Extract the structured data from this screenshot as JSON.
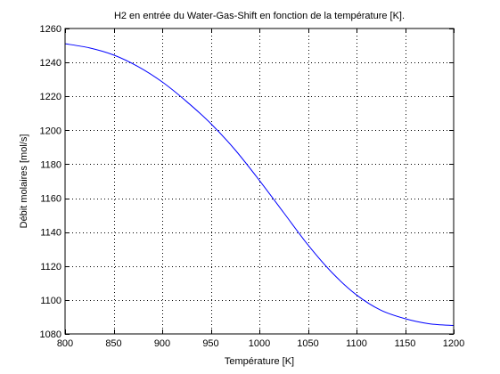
{
  "chart_data": {
    "type": "line",
    "title": "H2 en entrée du Water-Gas-Shift en fonction de la température [K].",
    "xlabel": "Température [K]",
    "ylabel": "Débit molaires [mol/s]",
    "xlim": [
      800,
      1200
    ],
    "ylim": [
      1080,
      1260
    ],
    "xticks": [
      800,
      850,
      900,
      950,
      1000,
      1050,
      1100,
      1150,
      1200
    ],
    "yticks": [
      1080,
      1100,
      1120,
      1140,
      1160,
      1180,
      1200,
      1220,
      1240,
      1260
    ],
    "grid": true,
    "grid_style": "dotted",
    "series": [
      {
        "color": "#0000ff",
        "x": [
          800,
          825,
          850,
          875,
          900,
          925,
          950,
          975,
          1000,
          1025,
          1050,
          1075,
          1100,
          1125,
          1150,
          1175,
          1200
        ],
        "y": [
          1251,
          1248.6,
          1244.4,
          1237.6,
          1228.5,
          1217,
          1204,
          1188.5,
          1170.5,
          1151.5,
          1132.5,
          1116,
          1103,
          1094,
          1089,
          1086,
          1085
        ]
      }
    ]
  }
}
